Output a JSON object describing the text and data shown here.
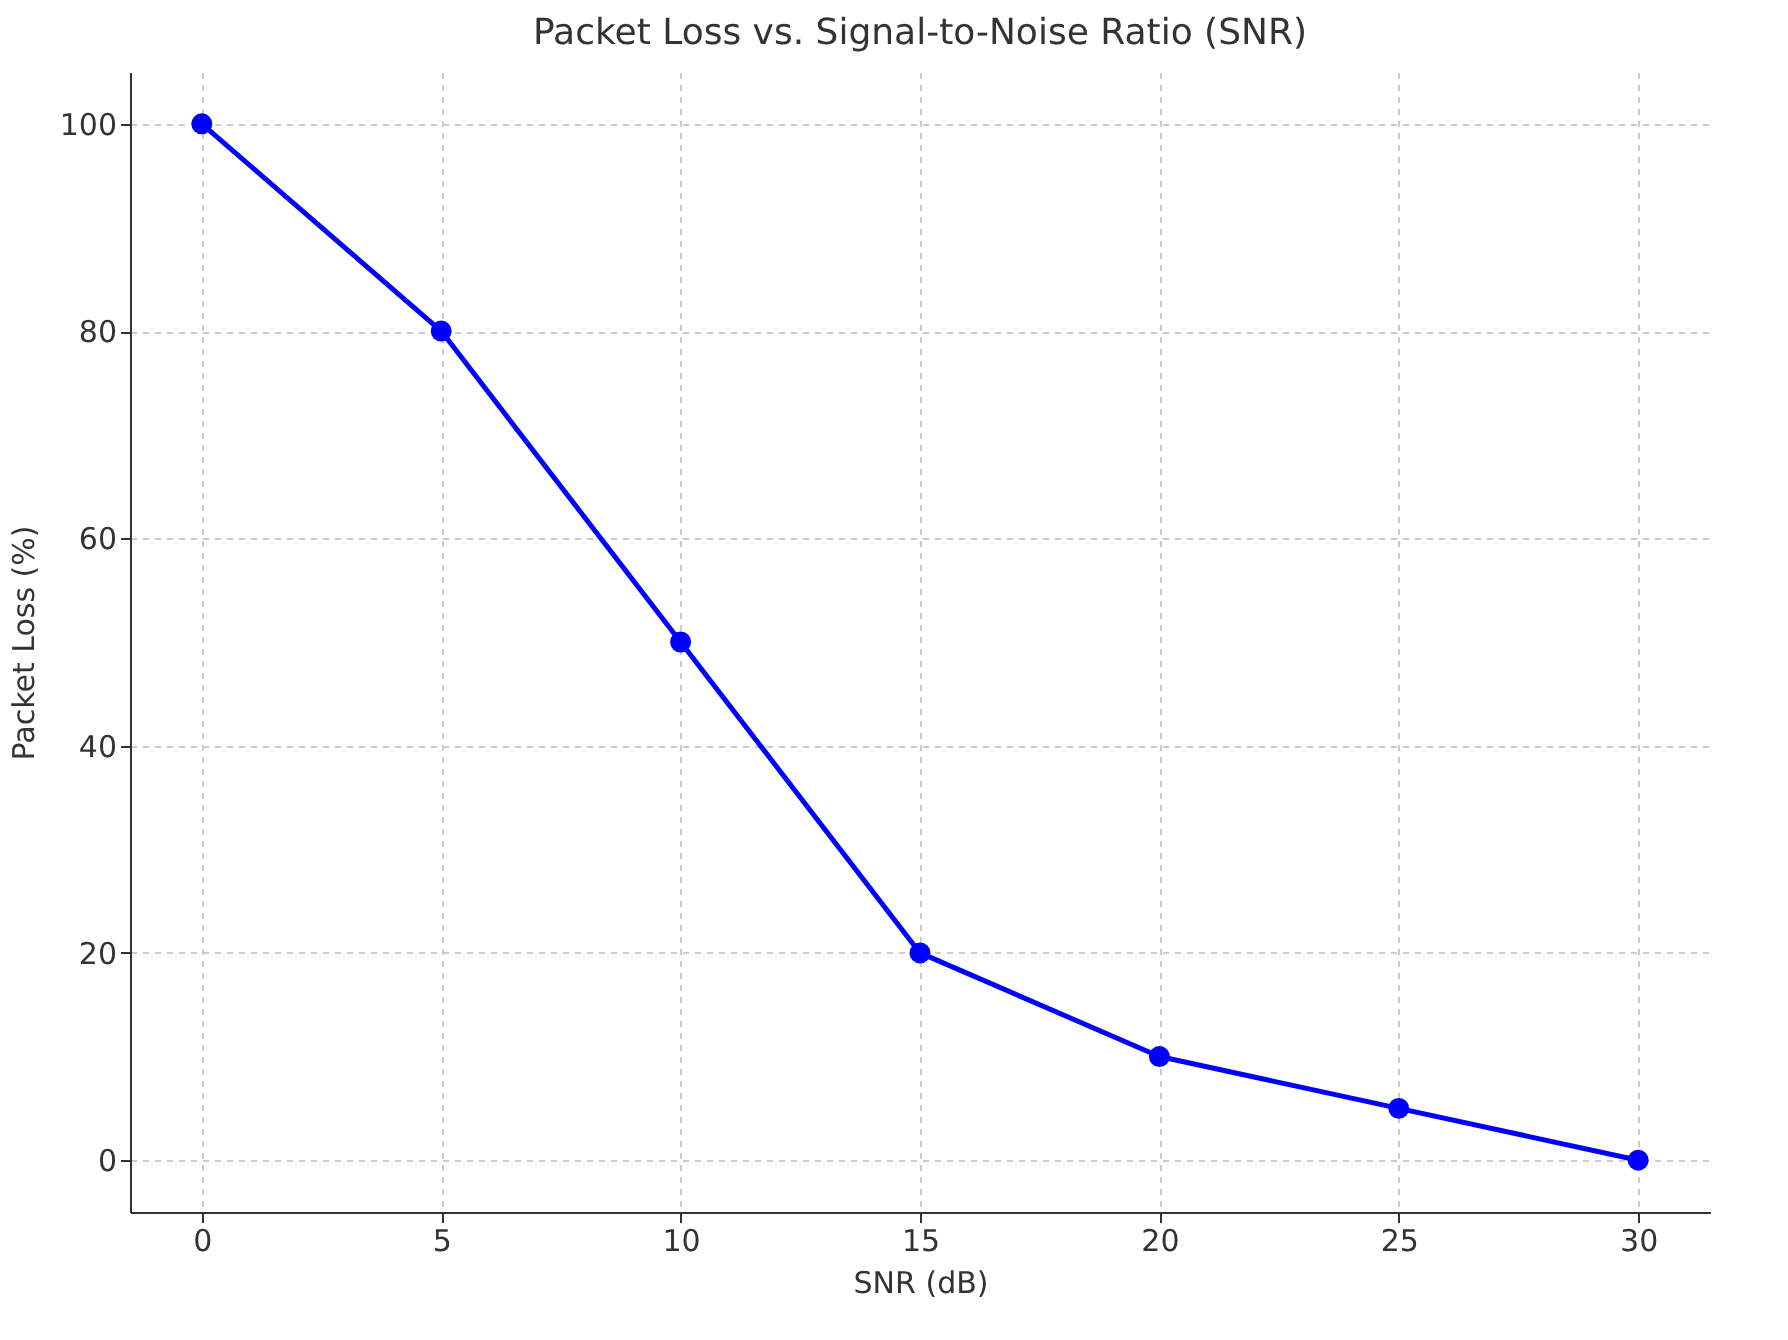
{
  "chart_data": {
    "type": "line",
    "title": "Packet Loss vs. Signal-to-Noise Ratio (SNR)",
    "xlabel": "SNR (dB)",
    "ylabel": "Packet Loss (%)",
    "x": [
      0,
      5,
      10,
      15,
      20,
      25,
      30
    ],
    "series": [
      {
        "color": "#0000ff",
        "values": [
          100,
          80,
          50,
          20,
          10,
          5,
          0
        ]
      }
    ],
    "xlim": [
      -1.5,
      31.5
    ],
    "ylim": [
      -5,
      105
    ],
    "xticks": [
      0,
      5,
      10,
      15,
      20,
      25,
      30
    ],
    "yticks": [
      0,
      20,
      40,
      60,
      80,
      100
    ],
    "grid": true,
    "marker": "circle",
    "line_style": "solid"
  }
}
